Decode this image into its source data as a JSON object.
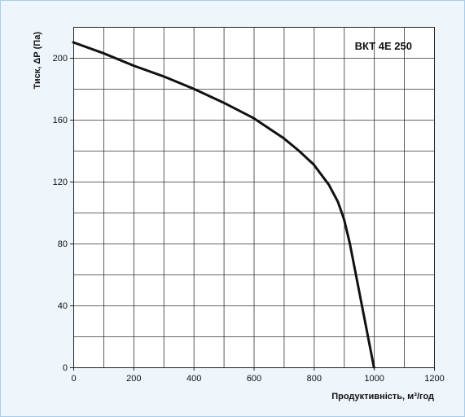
{
  "chart_data": {
    "type": "line",
    "title": "ВКТ 4Е 250",
    "xlabel": "Продуктивність, м³/год",
    "ylabel": "Тиск, ΔР (Па)",
    "xlim": [
      0,
      1200
    ],
    "ylim": [
      0,
      220
    ],
    "x_ticks": [
      0,
      200,
      400,
      600,
      800,
      1000,
      1200
    ],
    "y_ticks": [
      0,
      40,
      80,
      120,
      160,
      200
    ],
    "x_tick_labels": [
      "0",
      "200",
      "400",
      "600",
      "800",
      "1000",
      "1200"
    ],
    "y_tick_labels": [
      "0",
      "40",
      "80",
      "120",
      "160",
      "200"
    ],
    "x_grid_step": 100,
    "y_grid_step": 20,
    "grid": true,
    "title_placement": "top-right inside plot",
    "colors": {
      "panel_background": "#eef6fc",
      "panel_border": "#a9cbe6",
      "plot_background": "#ffffff",
      "grid": "#333333",
      "curve": "#111111"
    },
    "series": [
      {
        "x": [
          0,
          100,
          200,
          300,
          400,
          500,
          600,
          700,
          750,
          800,
          850,
          880,
          900,
          920,
          940,
          960,
          980,
          1000
        ],
        "y": [
          210,
          203,
          195,
          188,
          180,
          171,
          161,
          148,
          140,
          131,
          118,
          107,
          96,
          80,
          60,
          40,
          20,
          0
        ]
      }
    ]
  }
}
